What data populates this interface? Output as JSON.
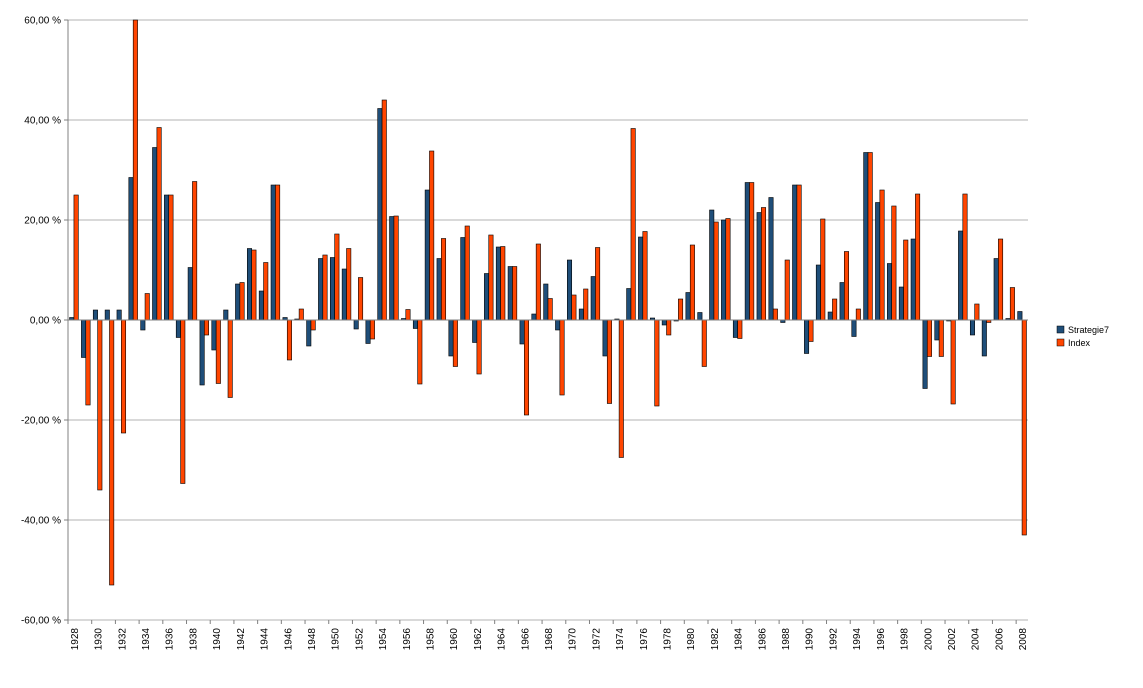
{
  "chart_data": {
    "type": "bar",
    "title": "",
    "xlabel": "",
    "ylabel": "",
    "ylim": [
      -0.6,
      0.6
    ],
    "y_ticks": [
      "60,00 %",
      "40,00 %",
      "20,00 %",
      "0,00 %",
      "-20,00 %",
      "-40,00 %",
      "-60,00 %"
    ],
    "y_tick_values": [
      0.6,
      0.4,
      0.2,
      0.0,
      -0.2,
      -0.4,
      -0.6
    ],
    "grid": true,
    "legend_position": "right",
    "categories": [
      "1928",
      "1929",
      "1930",
      "1931",
      "1932",
      "1933",
      "1934",
      "1935",
      "1936",
      "1937",
      "1938",
      "1939",
      "1940",
      "1941",
      "1942",
      "1943",
      "1944",
      "1945",
      "1946",
      "1947",
      "1948",
      "1949",
      "1950",
      "1951",
      "1952",
      "1953",
      "1954",
      "1955",
      "1956",
      "1957",
      "1958",
      "1959",
      "1960",
      "1961",
      "1962",
      "1963",
      "1964",
      "1965",
      "1966",
      "1967",
      "1968",
      "1969",
      "1970",
      "1971",
      "1972",
      "1973",
      "1974",
      "1975",
      "1976",
      "1977",
      "1978",
      "1979",
      "1980",
      "1981",
      "1982",
      "1983",
      "1984",
      "1985",
      "1986",
      "1987",
      "1988",
      "1989",
      "1990",
      "1991",
      "1992",
      "1993",
      "1994",
      "1995",
      "1996",
      "1997",
      "1998",
      "1999",
      "2000",
      "2001",
      "2002",
      "2003",
      "2004",
      "2005",
      "2006",
      "2007",
      "2008"
    ],
    "x_tick_labels": [
      "1928",
      "1930",
      "1932",
      "1934",
      "1936",
      "1938",
      "1940",
      "1942",
      "1944",
      "1946",
      "1948",
      "1950",
      "1952",
      "1954",
      "1956",
      "1958",
      "1960",
      "1962",
      "1964",
      "1966",
      "1968",
      "1970",
      "1972",
      "1974",
      "1976",
      "1978",
      "1980",
      "1982",
      "1984",
      "1986",
      "1988",
      "1990",
      "1992",
      "1994",
      "1996",
      "1998",
      "2000",
      "2002",
      "2004",
      "2006",
      "2008"
    ],
    "series": [
      {
        "name": "Strategie7",
        "color": "#1f4e79",
        "values": [
          0.005,
          -0.075,
          0.02,
          0.02,
          0.02,
          0.285,
          -0.02,
          0.345,
          0.25,
          -0.035,
          0.105,
          -0.13,
          -0.06,
          0.02,
          0.072,
          0.143,
          0.058,
          0.27,
          0.005,
          0.002,
          -0.052,
          0.123,
          0.125,
          0.102,
          -0.018,
          -0.047,
          0.423,
          0.207,
          0.003,
          -0.017,
          0.26,
          0.123,
          -0.072,
          0.165,
          -0.045,
          0.093,
          0.146,
          0.107,
          -0.048,
          0.012,
          0.072,
          -0.02,
          0.12,
          0.022,
          0.087,
          -0.072,
          0.002,
          0.063,
          0.166,
          0.004,
          -0.01,
          -0.002,
          0.055,
          0.015,
          0.22,
          0.2,
          -0.035,
          0.275,
          0.215,
          0.245,
          -0.005,
          0.27,
          -0.067,
          0.11,
          0.016,
          0.075,
          -0.033,
          0.335,
          0.235,
          0.113,
          0.066,
          0.162,
          -0.137,
          -0.04,
          -0.002,
          0.178,
          -0.03,
          -0.072,
          0.123,
          0.003,
          0.017
        ]
      },
      {
        "name": "Index",
        "color": "#ff4500",
        "values": [
          0.25,
          -0.17,
          -0.34,
          -0.53,
          -0.226,
          0.6,
          0.053,
          0.385,
          0.25,
          -0.327,
          0.277,
          -0.03,
          -0.127,
          -0.155,
          0.075,
          0.14,
          0.115,
          0.27,
          -0.08,
          0.022,
          -0.02,
          0.13,
          0.172,
          0.143,
          0.085,
          -0.038,
          0.44,
          0.208,
          0.021,
          -0.128,
          0.338,
          0.163,
          -0.093,
          0.188,
          -0.108,
          0.17,
          0.147,
          0.107,
          -0.19,
          0.152,
          0.043,
          -0.15,
          0.05,
          0.062,
          0.145,
          -0.167,
          -0.275,
          0.383,
          0.177,
          -0.172,
          -0.03,
          0.042,
          0.15,
          -0.093,
          0.196,
          0.203,
          -0.037,
          0.275,
          0.225,
          0.022,
          0.12,
          0.27,
          -0.043,
          0.202,
          0.042,
          0.137,
          0.022,
          0.335,
          0.26,
          0.228,
          0.16,
          0.252,
          -0.073,
          -0.073,
          -0.168,
          0.252,
          0.032,
          -0.005,
          0.162,
          0.065,
          -0.43
        ]
      }
    ]
  }
}
